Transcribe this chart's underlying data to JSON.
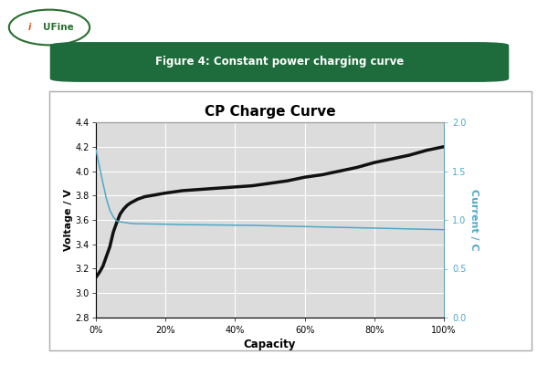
{
  "title": "CP Charge Curve",
  "xlabel": "Capacity",
  "ylabel_left": "Voltage / V",
  "ylabel_right": "Current / C",
  "header_text": "Figure 4: Constant power charging curve",
  "header_bg": "#1e6b3c",
  "header_text_color": "#ffffff",
  "plot_bg": "#dcdcdc",
  "fig_bg": "#ffffff",
  "voltage_color": "#111111",
  "current_color": "#4fa8c8",
  "voltage_linewidth": 2.5,
  "current_linewidth": 1.1,
  "ylim_left": [
    2.8,
    4.4
  ],
  "ylim_right": [
    0.0,
    2.0
  ],
  "yticks_left": [
    2.8,
    3.0,
    3.2,
    3.4,
    3.6,
    3.8,
    4.0,
    4.2,
    4.4
  ],
  "yticks_right": [
    0.0,
    0.5,
    1.0,
    1.5,
    2.0
  ],
  "xtick_labels": [
    "0%",
    "20%",
    "40%",
    "60%",
    "80%",
    "100%"
  ],
  "xtick_positions": [
    0,
    20,
    40,
    60,
    80,
    100
  ],
  "capacity_pct": [
    0,
    1,
    2,
    3,
    4,
    5,
    6,
    7,
    8,
    9,
    10,
    12,
    14,
    16,
    18,
    20,
    25,
    30,
    35,
    40,
    45,
    50,
    55,
    60,
    65,
    70,
    75,
    80,
    85,
    90,
    95,
    100
  ],
  "voltage_data": [
    3.13,
    3.17,
    3.22,
    3.3,
    3.38,
    3.5,
    3.58,
    3.65,
    3.69,
    3.72,
    3.74,
    3.77,
    3.79,
    3.8,
    3.81,
    3.82,
    3.84,
    3.85,
    3.86,
    3.87,
    3.88,
    3.9,
    3.92,
    3.95,
    3.97,
    4.0,
    4.03,
    4.07,
    4.1,
    4.13,
    4.17,
    4.2
  ],
  "current_data_c": [
    1.72,
    1.55,
    1.38,
    1.22,
    1.1,
    1.03,
    0.99,
    0.98,
    0.975,
    0.97,
    0.965,
    0.96,
    0.96,
    0.958,
    0.957,
    0.956,
    0.952,
    0.95,
    0.948,
    0.946,
    0.944,
    0.94,
    0.936,
    0.932,
    0.928,
    0.924,
    0.92,
    0.916,
    0.912,
    0.908,
    0.904,
    0.9
  ],
  "logo_text": "UFine",
  "logo_oval_color": "#2a6e30",
  "logo_flame_color": "#e85010",
  "border_color": "#999999",
  "chart_outer_border": "#aaaaaa"
}
